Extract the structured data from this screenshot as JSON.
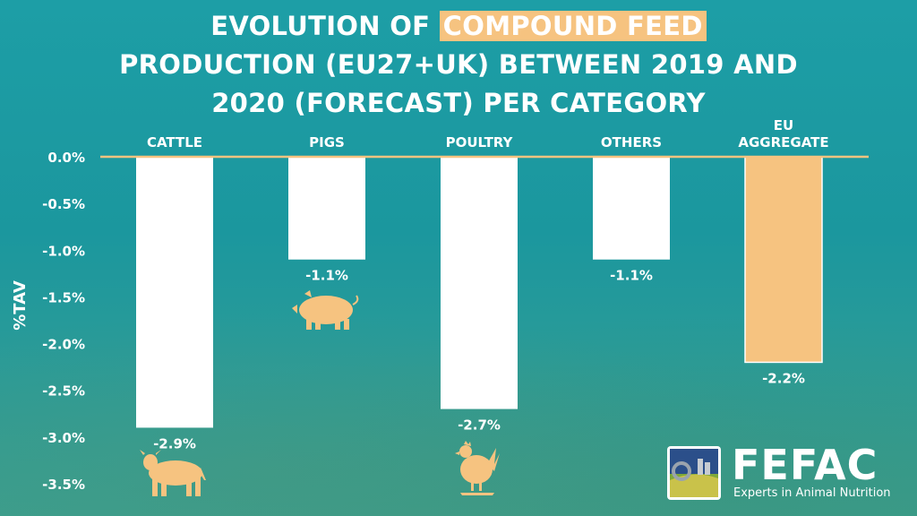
{
  "title": {
    "line1_pre": "EVOLUTION OF ",
    "line1_highlight": "COMPOUND FEED",
    "line2": "PRODUCTION (EU27+UK) BETWEEN 2019 AND",
    "line3": "2020 (FORECAST) PER CATEGORY"
  },
  "chart_data": {
    "type": "bar",
    "categories": [
      [
        "CATTLE"
      ],
      [
        "PIGS"
      ],
      [
        "POULTRY"
      ],
      [
        "OTHERS"
      ],
      [
        "EU",
        "AGGREGATE"
      ]
    ],
    "values": [
      -2.9,
      -1.1,
      -2.7,
      -1.1,
      -2.2
    ],
    "value_labels": [
      "-2.9%",
      "-1.1%",
      "-2.7%",
      "-1.1%",
      "-2.2%"
    ],
    "bar_colors": [
      "#ffffff",
      "#ffffff",
      "#ffffff",
      "#ffffff",
      "#f6c380"
    ],
    "ylabel": "%TAV",
    "ylim": [
      -3.5,
      0
    ],
    "yticks": [
      "0.0%",
      "-0.5%",
      "-1.0%",
      "-1.5%",
      "-2.0%",
      "-2.5%",
      "-3.0%",
      "-3.5%"
    ],
    "axis_color": "#f6c380",
    "grid": false
  },
  "icons": [
    "cow-icon",
    "pig-icon",
    "chicken-icon"
  ],
  "logo": {
    "name": "FEFAC",
    "tagline": "Experts in Animal Nutrition"
  },
  "colors": {
    "background": "#1d9ea6",
    "accent": "#f6c380",
    "text": "#ffffff"
  }
}
